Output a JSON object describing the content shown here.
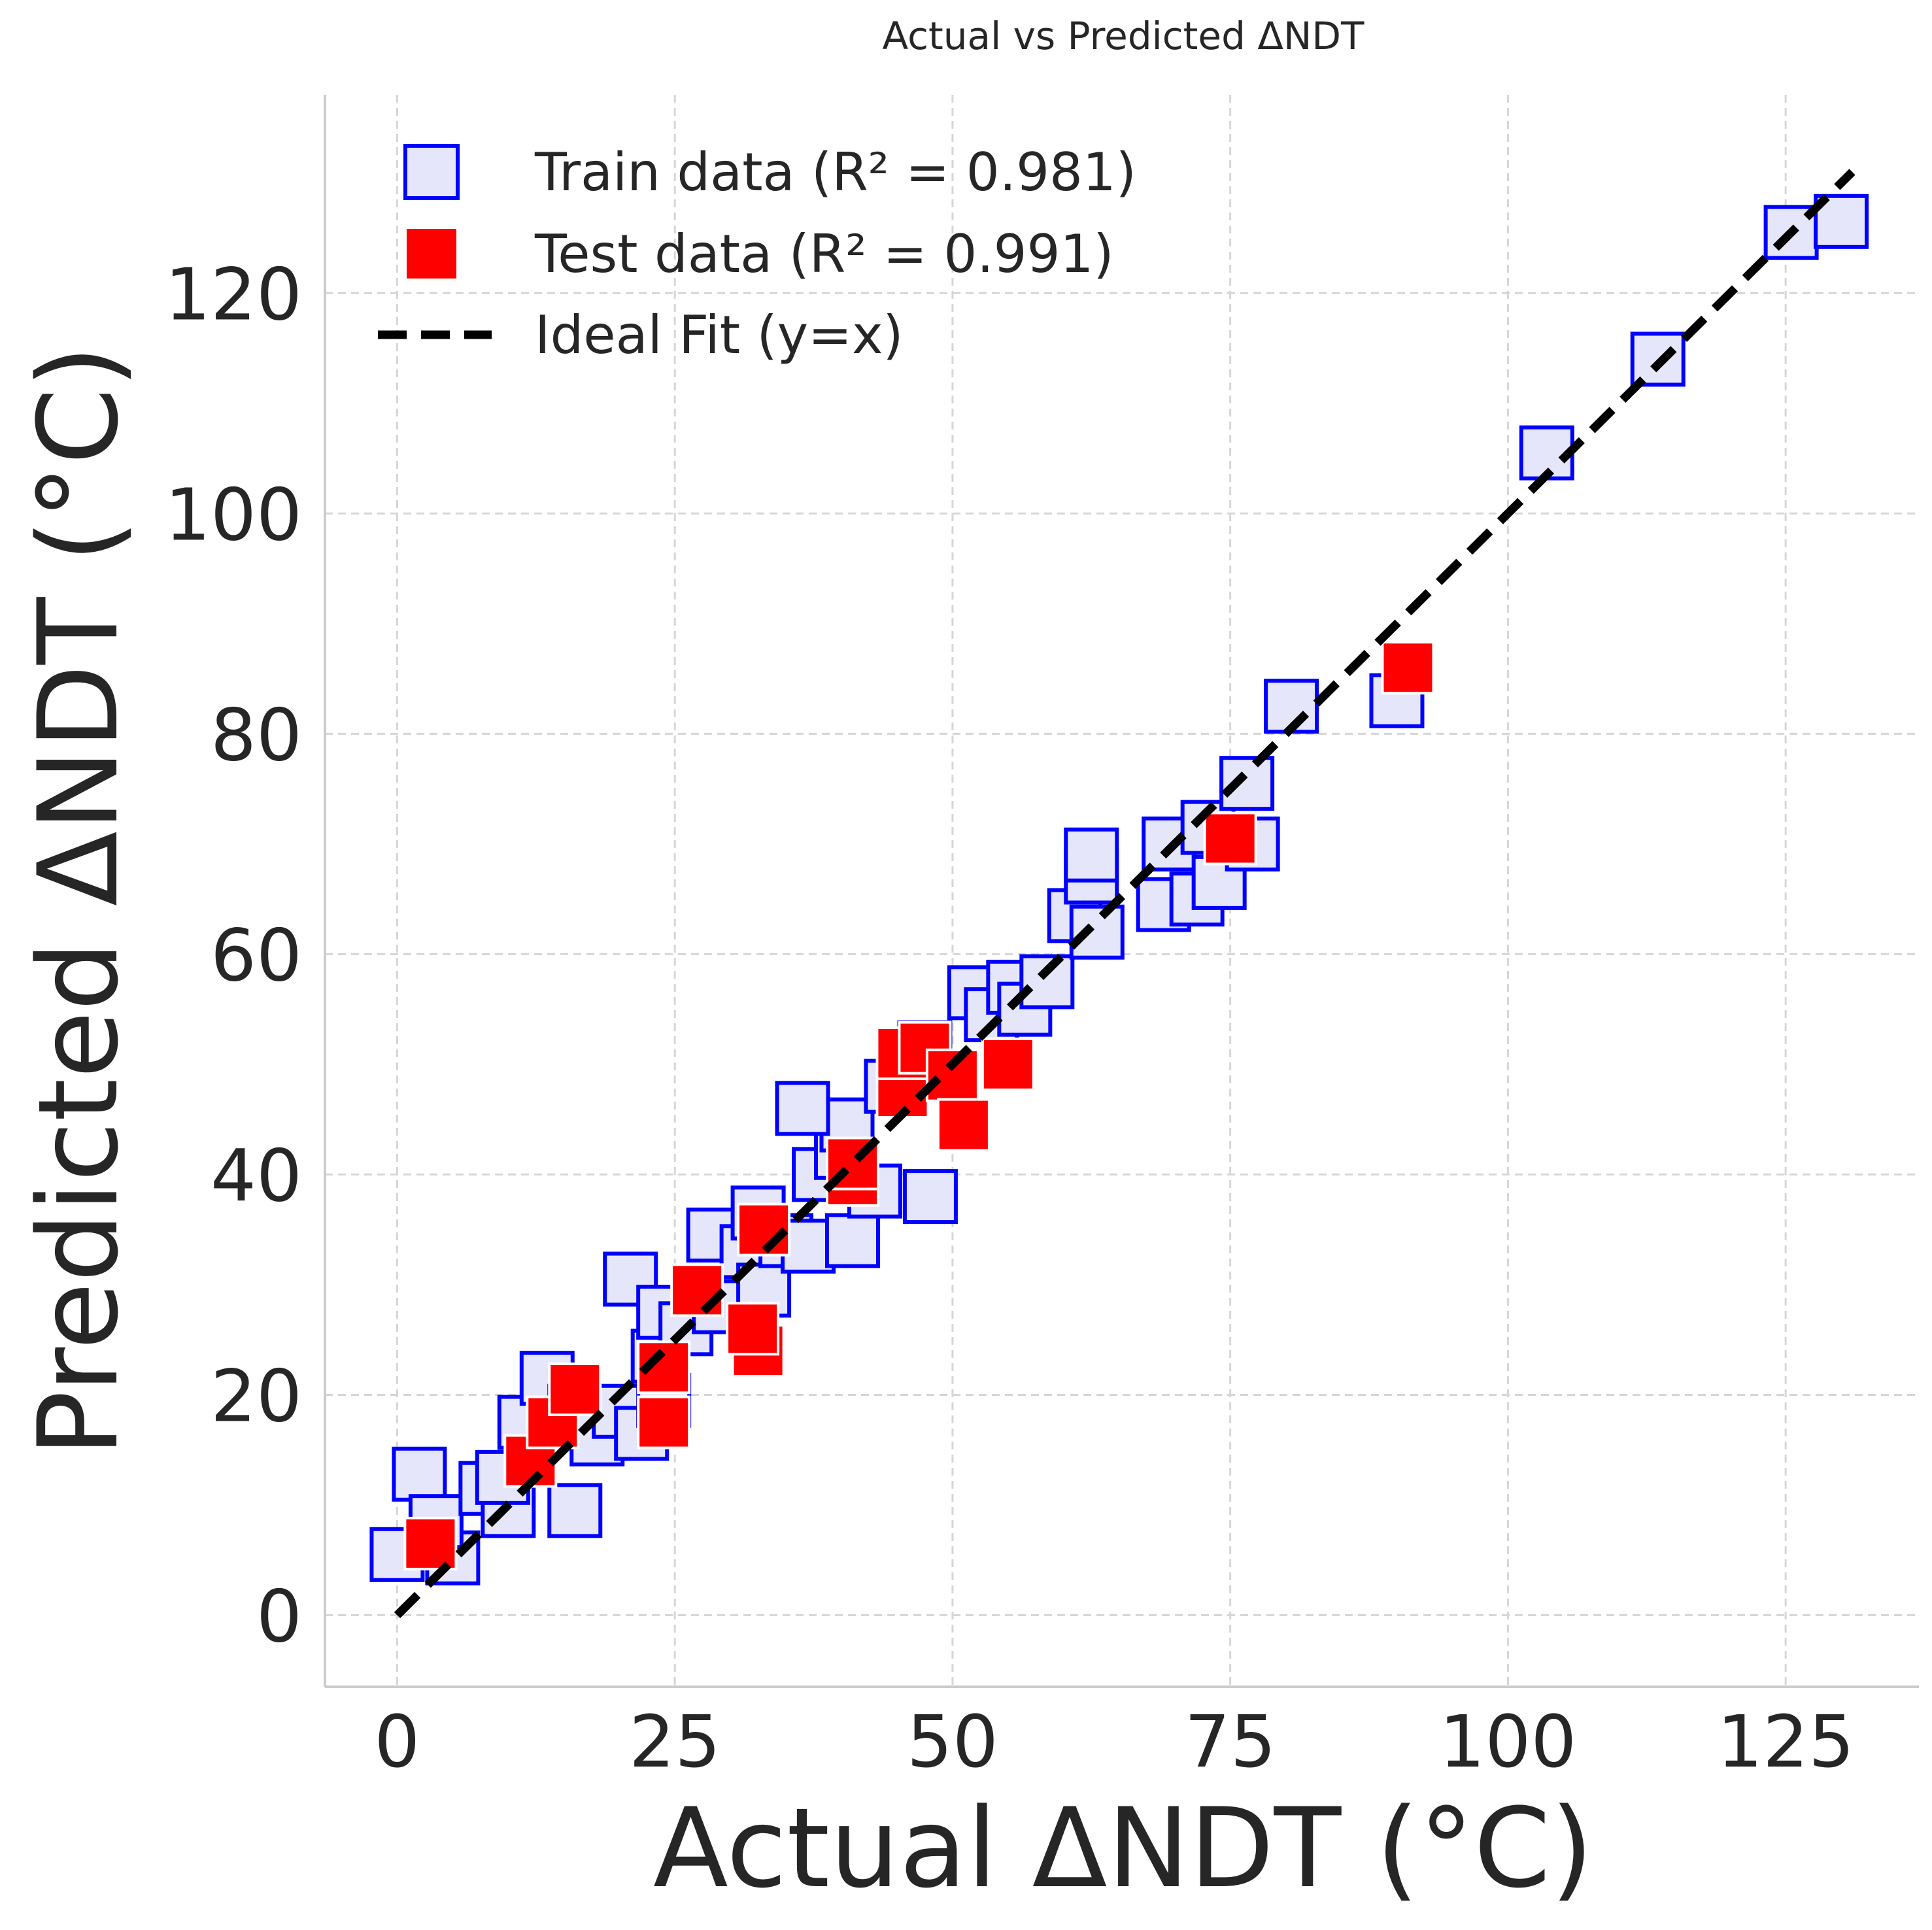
{
  "chart_data": {
    "type": "scatter",
    "title": "Actual vs Predicted ΔNDT",
    "xlabel": "Actual ΔNDT (°C)",
    "ylabel": "Predicted ΔNDT (°C)",
    "xlim": [
      -6.5,
      137
    ],
    "ylim": [
      -6.5,
      138
    ],
    "xticks": [
      0,
      25,
      50,
      75,
      100,
      125
    ],
    "yticks": [
      0,
      20,
      40,
      60,
      80,
      100,
      120
    ],
    "grid": true,
    "legend_position": "top-left",
    "series": [
      {
        "name": "Train data (R² = 0.981)",
        "marker": "square",
        "fill": "#e6e6fa",
        "edge": "#0000ff",
        "points": [
          [
            0,
            5.5
          ],
          [
            2,
            12.8
          ],
          [
            5,
            5.2
          ],
          [
            3.5,
            8.5
          ],
          [
            8,
            11.5
          ],
          [
            10,
            9.5
          ],
          [
            9.5,
            12.5
          ],
          [
            16,
            9.5
          ],
          [
            11.5,
            17.5
          ],
          [
            13.5,
            21.5
          ],
          [
            16,
            18.5
          ],
          [
            18,
            16
          ],
          [
            20,
            18.5
          ],
          [
            22,
            16.5
          ],
          [
            24,
            19.5
          ],
          [
            23.5,
            23.5
          ],
          [
            21,
            30.5
          ],
          [
            24,
            27.5
          ],
          [
            26,
            26
          ],
          [
            28.5,
            34.5
          ],
          [
            29,
            28
          ],
          [
            31.5,
            33
          ],
          [
            32.5,
            36.5
          ],
          [
            33,
            29.5
          ],
          [
            35,
            34
          ],
          [
            37,
            33.5
          ],
          [
            38,
            40
          ],
          [
            40,
            42
          ],
          [
            40.5,
            44.5
          ],
          [
            36.5,
            46
          ],
          [
            41,
            34
          ],
          [
            43,
            38.5
          ],
          [
            47.5,
            51.5
          ],
          [
            48,
            38
          ],
          [
            44.5,
            48
          ],
          [
            52,
            56.5
          ],
          [
            53.5,
            54.5
          ],
          [
            55.5,
            57
          ],
          [
            56.5,
            55
          ],
          [
            58.5,
            57.5
          ],
          [
            61,
            63.5
          ],
          [
            62.5,
            67
          ],
          [
            63,
            62
          ],
          [
            62.5,
            69
          ],
          [
            69,
            64.5
          ],
          [
            69.5,
            70
          ],
          [
            72,
            65
          ],
          [
            73,
            71.5
          ],
          [
            74,
            66.5
          ],
          [
            77,
            70
          ],
          [
            76.5,
            75.5
          ],
          [
            80.5,
            82.5
          ],
          [
            90,
            83
          ],
          [
            103.5,
            105.5
          ],
          [
            113.5,
            114
          ],
          [
            125.5,
            125.5
          ],
          [
            130,
            126.5
          ]
        ]
      },
      {
        "name": "Test data (R² = 0.991)",
        "marker": "square",
        "fill": "#ff0000",
        "edge": "#ffffff",
        "points": [
          [
            3,
            6.5
          ],
          [
            12,
            14
          ],
          [
            14,
            17.5
          ],
          [
            16,
            20.5
          ],
          [
            24,
            17.5
          ],
          [
            24,
            22.5
          ],
          [
            27,
            29.5
          ],
          [
            32.5,
            24
          ],
          [
            32,
            26
          ],
          [
            33,
            35
          ],
          [
            41,
            39.5
          ],
          [
            41,
            41
          ],
          [
            45.5,
            47.5
          ],
          [
            45.5,
            51
          ],
          [
            47.5,
            51.5
          ],
          [
            50,
            49
          ],
          [
            51,
            44.5
          ],
          [
            55,
            50
          ],
          [
            75,
            70.5
          ],
          [
            91,
            86
          ]
        ]
      },
      {
        "name": "Ideal Fit (y=x)",
        "type": "line",
        "style": "dashed",
        "color": "#000000",
        "points": [
          [
            0,
            0
          ],
          [
            131,
            131
          ]
        ]
      }
    ]
  }
}
